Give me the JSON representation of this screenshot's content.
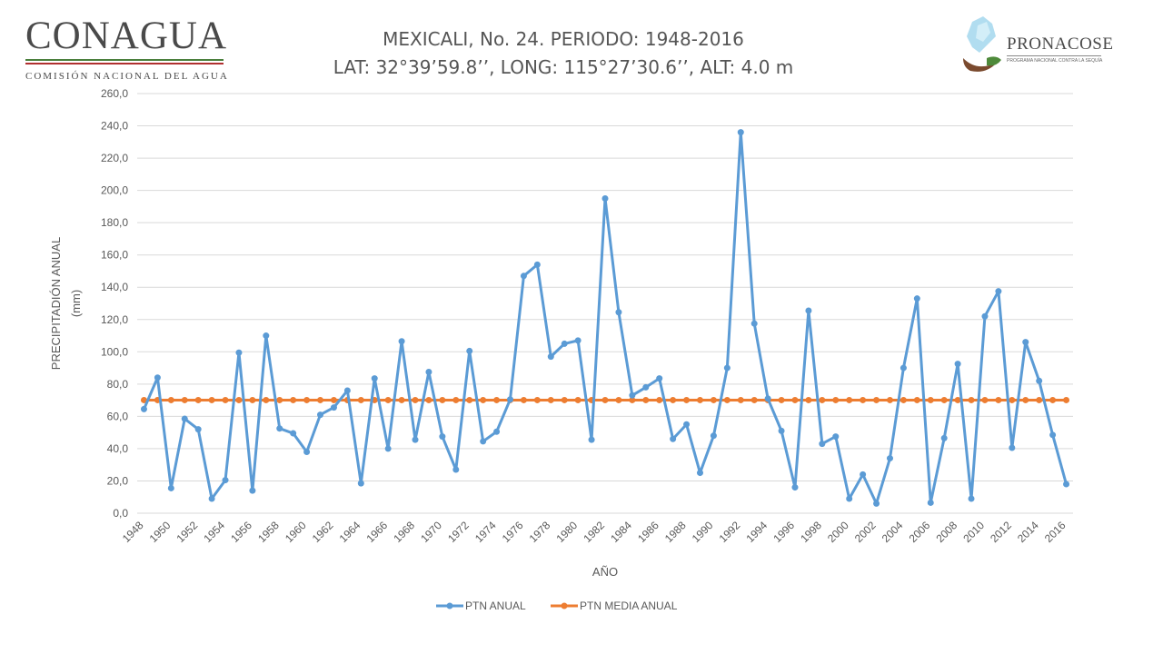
{
  "logos": {
    "left_name": "CONAGUA",
    "left_subtitle": "COMISIÓN NACIONAL DEL AGUA",
    "right_name": "PRONACOSE",
    "right_subtitle": "PROGRAMA NACIONAL CONTRA LA SEQUÍA"
  },
  "colors": {
    "annual": "#5b9bd5",
    "mean": "#ed7d31",
    "grid": "#d9d9d9",
    "text": "#595959"
  },
  "chart_data": {
    "type": "line",
    "title": "MEXICALI, No. 24. PERIODO: 1948-2016",
    "subtitle": "LAT: 32°39’59.8’’, LONG: 115°27’30.6’’, ALT: 4.0 m",
    "xlabel": "AÑO",
    "ylabel": "PRECIPITADIÓN ANUAL",
    "ylabel_unit": "(mm)",
    "ylim": [
      0,
      260
    ],
    "ytick_step": 20,
    "grid": true,
    "legend_position": "bottom",
    "x_start": 1948,
    "x_end": 2016,
    "x_tick_step": 2,
    "series": [
      {
        "name": "PTN ANUAL",
        "x": [
          1948,
          1949,
          1950,
          1951,
          1952,
          1953,
          1954,
          1955,
          1956,
          1957,
          1958,
          1959,
          1960,
          1961,
          1962,
          1963,
          1964,
          1965,
          1966,
          1967,
          1968,
          1969,
          1970,
          1971,
          1972,
          1973,
          1974,
          1975,
          1976,
          1977,
          1978,
          1979,
          1980,
          1981,
          1982,
          1983,
          1984,
          1985,
          1986,
          1987,
          1988,
          1989,
          1990,
          1991,
          1992,
          1993,
          1994,
          1995,
          1996,
          1997,
          1998,
          1999,
          2000,
          2001,
          2002,
          2003,
          2004,
          2005,
          2006,
          2007,
          2008,
          2009,
          2010,
          2011,
          2012,
          2013,
          2014,
          2015,
          2016
        ],
        "values": [
          64.5,
          84.0,
          15.5,
          58.5,
          52.0,
          9.0,
          20.5,
          99.5,
          14.0,
          110.0,
          52.5,
          49.5,
          38.0,
          61.0,
          65.5,
          76.0,
          18.5,
          83.5,
          40.0,
          106.5,
          45.5,
          87.5,
          47.5,
          27.0,
          100.5,
          44.5,
          50.5,
          70.5,
          147.0,
          154.0,
          97.0,
          105.0,
          107.0,
          45.5,
          195.0,
          124.5,
          73.0,
          78.0,
          83.5,
          46.0,
          55.0,
          25.0,
          48.0,
          90.0,
          236.0,
          117.5,
          71.0,
          51.0,
          16.0,
          125.5,
          43.0,
          47.5,
          9.0,
          24.0,
          6.0,
          34.0,
          90.0,
          133.0,
          6.5,
          46.5,
          92.5,
          9.0,
          122.0,
          137.5,
          40.5,
          106.0,
          82.0,
          48.5,
          18.0
        ]
      },
      {
        "name": "PTN MEDIA ANUAL",
        "value": 70.1
      }
    ]
  }
}
